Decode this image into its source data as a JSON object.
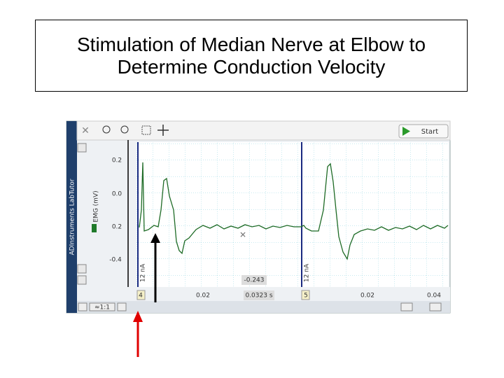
{
  "title": "Stimulation of Median Nerve at Elbow to Determine Conduction Velocity",
  "toolbar": {
    "button": "Start"
  },
  "sidebar": {
    "brand": "ADInstruments LabTutor",
    "channel": "EMG (mV)",
    "scale": "≈1:1"
  },
  "plot": {
    "y_labels": [
      "0.2",
      "0.0",
      "0.2",
      "-0.4"
    ],
    "stim_labels": [
      "12 nA",
      "12 nA"
    ],
    "readout_value": "-0.243",
    "readout_time": "0.0323 s",
    "x_labels": [
      "0.02",
      "0.02",
      "0.04"
    ],
    "markers": [
      "4",
      "5"
    ]
  }
}
